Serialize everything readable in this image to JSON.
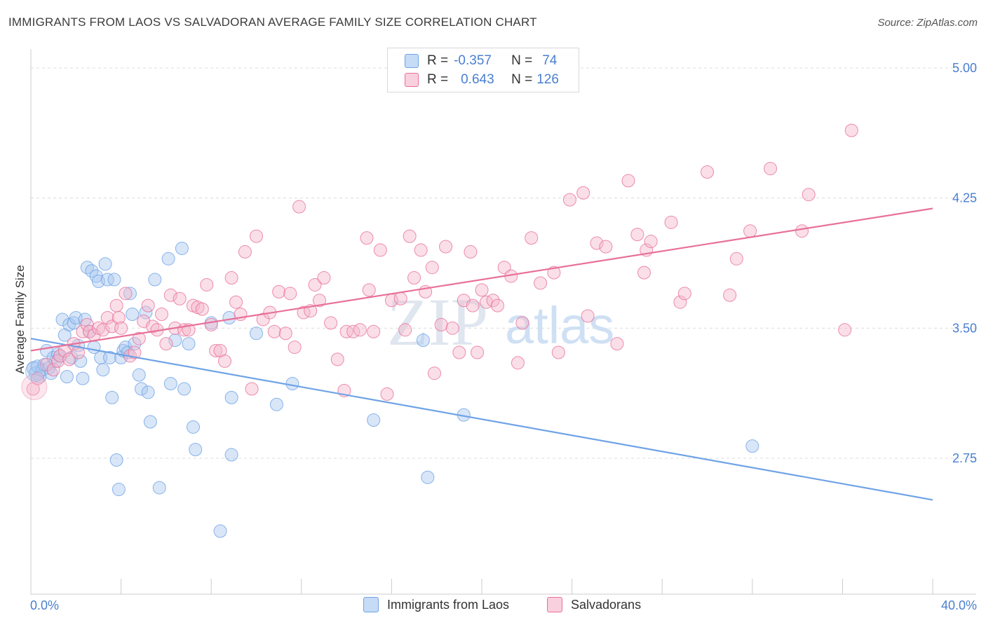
{
  "header": {
    "title": "IMMIGRANTS FROM LAOS VS SALVADORAN AVERAGE FAMILY SIZE CORRELATION CHART",
    "source": "Source: ZipAtlas.com"
  },
  "legend": {
    "rows": [
      {
        "r_label": "R =",
        "r_value": "-0.357",
        "n_label": "N =",
        "n_value": "74",
        "color": "#a8c8f0"
      },
      {
        "r_label": "R =",
        "r_value": "0.643",
        "n_label": "N =",
        "n_value": "126",
        "color": "#f5b8cb"
      }
    ]
  },
  "bottom_legend": [
    {
      "label": "Immigrants from Laos",
      "color": "#a8c8f0"
    },
    {
      "label": "Salvadorans",
      "color": "#f5b8cb"
    }
  ],
  "watermark": {
    "zip": "ZIP",
    "atlas": "atlas"
  },
  "chart_data": {
    "type": "scatter",
    "title": "IMMIGRANTS FROM LAOS VS SALVADORAN AVERAGE FAMILY SIZE CORRELATION CHART",
    "xlabel": "",
    "ylabel": "Average Family Size",
    "xlim": [
      0,
      40
    ],
    "ylim": [
      2.05,
      5.05
    ],
    "x_tick_labels": [
      "0.0%",
      "40.0%"
    ],
    "y_ticks": [
      2.75,
      3.5,
      4.25,
      5.0
    ],
    "y_tick_labels": [
      "2.75",
      "3.50",
      "4.25",
      "5.00"
    ],
    "grid": "horizontal dashed",
    "legend_position": "top-center",
    "series": [
      {
        "name": "Immigrants from Laos",
        "color": "#6fa3e6",
        "fill": "#a8c8f0",
        "trend": {
          "x": [
            0,
            40
          ],
          "y": [
            3.44,
            2.51
          ]
        },
        "points": [
          [
            0.1,
            3.27
          ],
          [
            0.2,
            3.24
          ],
          [
            0.3,
            3.28
          ],
          [
            0.4,
            3.22
          ],
          [
            0.5,
            3.26
          ],
          [
            0.6,
            3.29
          ],
          [
            0.8,
            3.27
          ],
          [
            0.9,
            3.24
          ],
          [
            0.7,
            3.37
          ],
          [
            1.0,
            3.33
          ],
          [
            1.1,
            3.31
          ],
          [
            1.2,
            3.35
          ],
          [
            1.3,
            3.34
          ],
          [
            1.4,
            3.55
          ],
          [
            1.5,
            3.46
          ],
          [
            1.6,
            3.22
          ],
          [
            1.7,
            3.52
          ],
          [
            1.8,
            3.33
          ],
          [
            1.9,
            3.53
          ],
          [
            2.0,
            3.56
          ],
          [
            2.1,
            3.4
          ],
          [
            2.2,
            3.31
          ],
          [
            2.3,
            3.21
          ],
          [
            2.4,
            3.55
          ],
          [
            2.5,
            3.85
          ],
          [
            2.6,
            3.48
          ],
          [
            2.7,
            3.83
          ],
          [
            2.8,
            3.39
          ],
          [
            2.9,
            3.8
          ],
          [
            3.0,
            3.77
          ],
          [
            3.1,
            3.33
          ],
          [
            3.2,
            3.26
          ],
          [
            3.3,
            3.87
          ],
          [
            3.4,
            3.78
          ],
          [
            3.5,
            3.33
          ],
          [
            3.6,
            3.1
          ],
          [
            3.7,
            3.78
          ],
          [
            3.8,
            2.74
          ],
          [
            3.9,
            2.57
          ],
          [
            4.0,
            3.33
          ],
          [
            4.1,
            3.37
          ],
          [
            4.2,
            3.39
          ],
          [
            4.3,
            3.36
          ],
          [
            4.4,
            3.7
          ],
          [
            4.5,
            3.58
          ],
          [
            4.6,
            3.41
          ],
          [
            4.8,
            3.23
          ],
          [
            4.9,
            3.15
          ],
          [
            5.1,
            3.59
          ],
          [
            5.2,
            3.13
          ],
          [
            5.3,
            2.96
          ],
          [
            5.5,
            3.78
          ],
          [
            5.7,
            2.58
          ],
          [
            6.1,
            3.9
          ],
          [
            6.2,
            3.18
          ],
          [
            6.4,
            3.43
          ],
          [
            6.7,
            3.96
          ],
          [
            6.8,
            3.15
          ],
          [
            7.0,
            3.41
          ],
          [
            7.2,
            2.93
          ],
          [
            7.3,
            2.8
          ],
          [
            8.0,
            3.53
          ],
          [
            8.4,
            2.33
          ],
          [
            8.8,
            3.56
          ],
          [
            8.9,
            2.77
          ],
          [
            8.9,
            3.1
          ],
          [
            10.0,
            3.47
          ],
          [
            10.9,
            3.06
          ],
          [
            11.6,
            3.18
          ],
          [
            15.2,
            2.97
          ],
          [
            17.4,
            3.43
          ],
          [
            17.6,
            2.64
          ],
          [
            19.2,
            3.0
          ],
          [
            32.0,
            2.82
          ]
        ]
      },
      {
        "name": "Salvadorans",
        "color": "#e87099",
        "fill": "#f5b8cb",
        "trend": {
          "x": [
            0,
            40
          ],
          "y": [
            3.37,
            4.19
          ]
        },
        "points": [
          [
            0.1,
            3.15
          ],
          [
            0.3,
            3.21
          ],
          [
            0.7,
            3.29
          ],
          [
            1.0,
            3.26
          ],
          [
            1.2,
            3.31
          ],
          [
            1.3,
            3.34
          ],
          [
            1.5,
            3.37
          ],
          [
            1.7,
            3.32
          ],
          [
            1.9,
            3.41
          ],
          [
            2.1,
            3.36
          ],
          [
            2.3,
            3.48
          ],
          [
            2.5,
            3.52
          ],
          [
            2.6,
            3.48
          ],
          [
            2.8,
            3.46
          ],
          [
            3.0,
            3.5
          ],
          [
            3.2,
            3.49
          ],
          [
            3.4,
            3.56
          ],
          [
            3.6,
            3.51
          ],
          [
            3.8,
            3.63
          ],
          [
            3.9,
            3.56
          ],
          [
            4.0,
            3.5
          ],
          [
            4.2,
            3.7
          ],
          [
            4.4,
            3.34
          ],
          [
            4.6,
            3.36
          ],
          [
            4.8,
            3.44
          ],
          [
            5.0,
            3.54
          ],
          [
            5.2,
            3.63
          ],
          [
            5.4,
            3.51
          ],
          [
            5.6,
            3.49
          ],
          [
            5.8,
            3.58
          ],
          [
            6.0,
            3.41
          ],
          [
            6.2,
            3.69
          ],
          [
            6.4,
            3.5
          ],
          [
            6.6,
            3.67
          ],
          [
            6.8,
            3.49
          ],
          [
            7.0,
            3.49
          ],
          [
            7.2,
            3.63
          ],
          [
            7.4,
            3.62
          ],
          [
            7.6,
            3.61
          ],
          [
            7.8,
            3.75
          ],
          [
            8.0,
            3.52
          ],
          [
            8.2,
            3.37
          ],
          [
            8.4,
            3.37
          ],
          [
            8.6,
            3.31
          ],
          [
            8.9,
            3.79
          ],
          [
            9.1,
            3.65
          ],
          [
            9.3,
            3.58
          ],
          [
            9.5,
            3.94
          ],
          [
            9.8,
            3.15
          ],
          [
            10.0,
            4.03
          ],
          [
            10.3,
            3.55
          ],
          [
            10.6,
            3.59
          ],
          [
            10.8,
            3.48
          ],
          [
            11.0,
            3.71
          ],
          [
            11.3,
            3.47
          ],
          [
            11.5,
            3.7
          ],
          [
            11.7,
            3.39
          ],
          [
            11.9,
            4.2
          ],
          [
            12.1,
            3.59
          ],
          [
            12.4,
            3.6
          ],
          [
            12.6,
            3.75
          ],
          [
            12.8,
            3.66
          ],
          [
            13.0,
            3.79
          ],
          [
            13.3,
            3.53
          ],
          [
            13.6,
            3.32
          ],
          [
            13.9,
            3.14
          ],
          [
            14.0,
            3.48
          ],
          [
            14.3,
            3.48
          ],
          [
            14.6,
            3.49
          ],
          [
            14.9,
            4.02
          ],
          [
            15.0,
            3.72
          ],
          [
            15.2,
            3.48
          ],
          [
            15.5,
            3.95
          ],
          [
            15.8,
            3.12
          ],
          [
            16.0,
            3.66
          ],
          [
            16.4,
            3.67
          ],
          [
            16.6,
            3.49
          ],
          [
            16.8,
            4.03
          ],
          [
            17.0,
            3.79
          ],
          [
            17.3,
            3.95
          ],
          [
            17.5,
            3.71
          ],
          [
            17.8,
            3.85
          ],
          [
            17.9,
            3.24
          ],
          [
            18.2,
            3.52
          ],
          [
            18.4,
            3.97
          ],
          [
            18.7,
            3.5
          ],
          [
            19.0,
            3.36
          ],
          [
            19.2,
            3.66
          ],
          [
            19.5,
            3.94
          ],
          [
            19.6,
            3.63
          ],
          [
            19.8,
            3.36
          ],
          [
            20.0,
            3.72
          ],
          [
            20.2,
            3.65
          ],
          [
            20.5,
            3.66
          ],
          [
            20.7,
            3.63
          ],
          [
            21.0,
            3.85
          ],
          [
            21.3,
            3.8
          ],
          [
            21.6,
            3.3
          ],
          [
            21.8,
            3.53
          ],
          [
            22.2,
            4.02
          ],
          [
            22.6,
            3.76
          ],
          [
            23.2,
            3.82
          ],
          [
            23.4,
            3.36
          ],
          [
            23.9,
            4.24
          ],
          [
            24.5,
            4.28
          ],
          [
            24.7,
            3.57
          ],
          [
            25.1,
            3.99
          ],
          [
            25.5,
            3.97
          ],
          [
            26.0,
            3.41
          ],
          [
            26.5,
            4.35
          ],
          [
            26.9,
            4.04
          ],
          [
            27.2,
            3.82
          ],
          [
            27.3,
            3.95
          ],
          [
            27.5,
            4.0
          ],
          [
            28.4,
            4.11
          ],
          [
            28.8,
            3.65
          ],
          [
            29.0,
            3.7
          ],
          [
            30.0,
            4.4
          ],
          [
            31.0,
            3.69
          ],
          [
            31.3,
            3.9
          ],
          [
            31.9,
            4.06
          ],
          [
            32.8,
            4.42
          ],
          [
            34.2,
            4.06
          ],
          [
            34.5,
            4.27
          ],
          [
            36.1,
            3.49
          ],
          [
            36.4,
            4.64
          ]
        ]
      }
    ]
  }
}
